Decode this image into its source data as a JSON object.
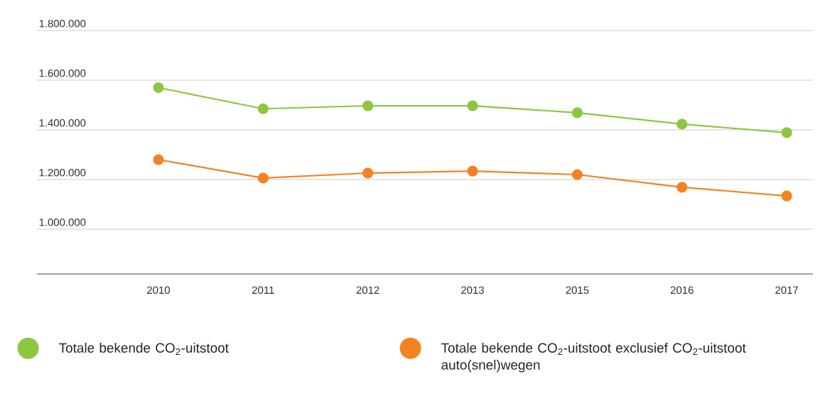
{
  "chart_data": {
    "type": "line",
    "categories": [
      "2010",
      "2011",
      "2012",
      "2013",
      "2015",
      "2016",
      "2017"
    ],
    "series": [
      {
        "name": "Totale bekende CO$_{2}$-uitstoot",
        "color": "#8dc63f",
        "values": [
          1570000,
          1485000,
          1497000,
          1497000,
          1469000,
          1423000,
          1389000
        ]
      },
      {
        "name": "Totale bekende CO$_{2}$-uitstoot exclusief CO$_{2}$-uitstoot auto(snel)wegen",
        "color": "#f58220",
        "values": [
          1280000,
          1206000,
          1226000,
          1234000,
          1220000,
          1169000,
          1134000
        ]
      }
    ],
    "ylim": [
      820000,
      1800000
    ],
    "yticks": [
      {
        "value": 1000000,
        "label": "1.000.000"
      },
      {
        "value": 1200000,
        "label": "1.200.000"
      },
      {
        "value": 1400000,
        "label": "1.400.000"
      },
      {
        "value": 1600000,
        "label": "1.600.000"
      },
      {
        "value": 1800000,
        "label": "1.800.000"
      }
    ],
    "grid": "y",
    "legend": "bottom",
    "marker": "circle",
    "line_style": "solid"
  }
}
